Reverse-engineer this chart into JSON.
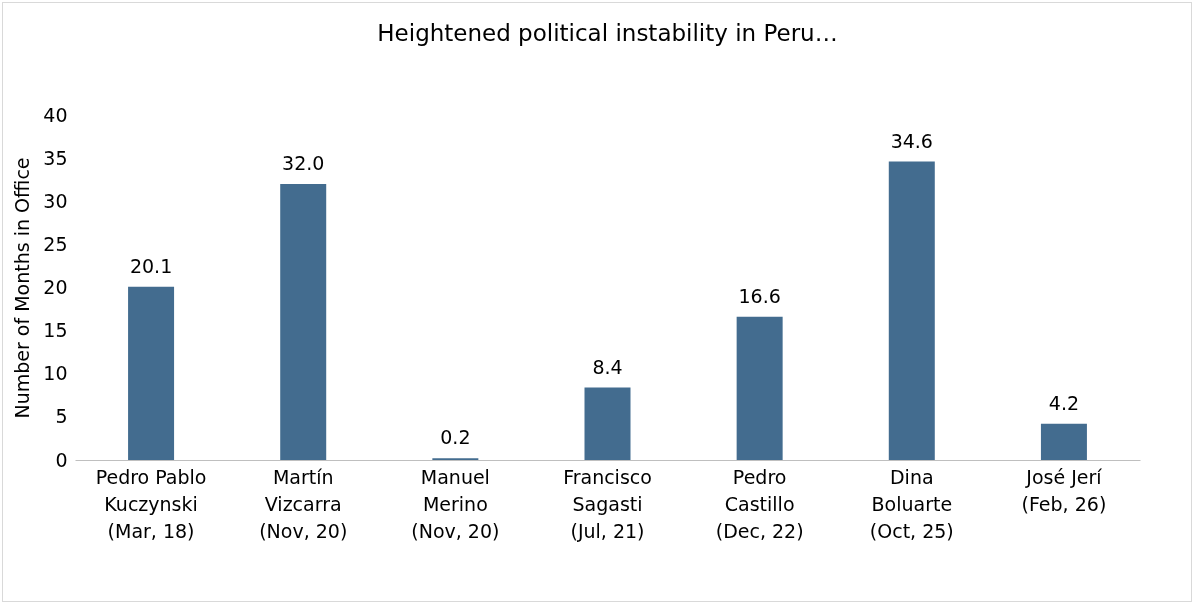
{
  "chart_data": {
    "type": "bar",
    "title": "Heightened political instability in Peru…",
    "ylabel": "Number of Months in Office",
    "categories": [
      "Pedro Pablo\nKuczynski\n(Mar, 18)",
      "Martín\nVizcarra\n(Nov, 20)",
      "Manuel\nMerino\n(Nov, 20)",
      "Francisco\nSagasti\n(Jul, 21)",
      "Pedro\nCastillo\n(Dec, 22)",
      "Dina\nBoluarte\n(Oct, 25)",
      "José Jerí\n(Feb, 26)"
    ],
    "values": [
      20.1,
      32.0,
      0.2,
      8.4,
      16.6,
      34.6,
      4.2
    ],
    "color": "#436c8f",
    "value_labels": [
      "20.1",
      "32.0",
      "0.2",
      "8.4",
      "16.6",
      "34.6",
      "4.2"
    ],
    "ylim": [
      0,
      40
    ],
    "yticks": [
      0,
      5,
      10,
      15,
      20,
      25,
      30,
      35,
      40
    ],
    "grid": false
  }
}
